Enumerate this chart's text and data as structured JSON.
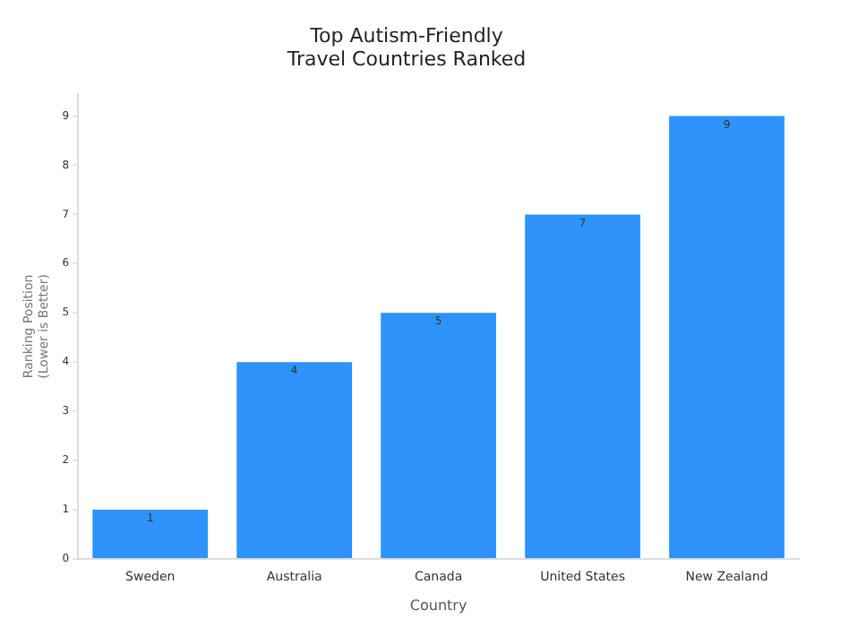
{
  "chart_data": {
    "type": "bar",
    "title": "Top Autism-Friendly\nTravel Countries Ranked",
    "xlabel": "Country",
    "ylabel": "Ranking Position\n(Lower is Better)",
    "categories": [
      "Sweden",
      "Australia",
      "Canada",
      "United States",
      "New Zealand"
    ],
    "values": [
      1,
      4,
      5,
      7,
      9
    ],
    "color": "#2e93fa",
    "ylim": [
      0,
      9.45
    ],
    "yticks": [
      0,
      1,
      2,
      3,
      4,
      5,
      6,
      7,
      8,
      9
    ],
    "grid": false,
    "legend": false,
    "data_labels": true
  }
}
